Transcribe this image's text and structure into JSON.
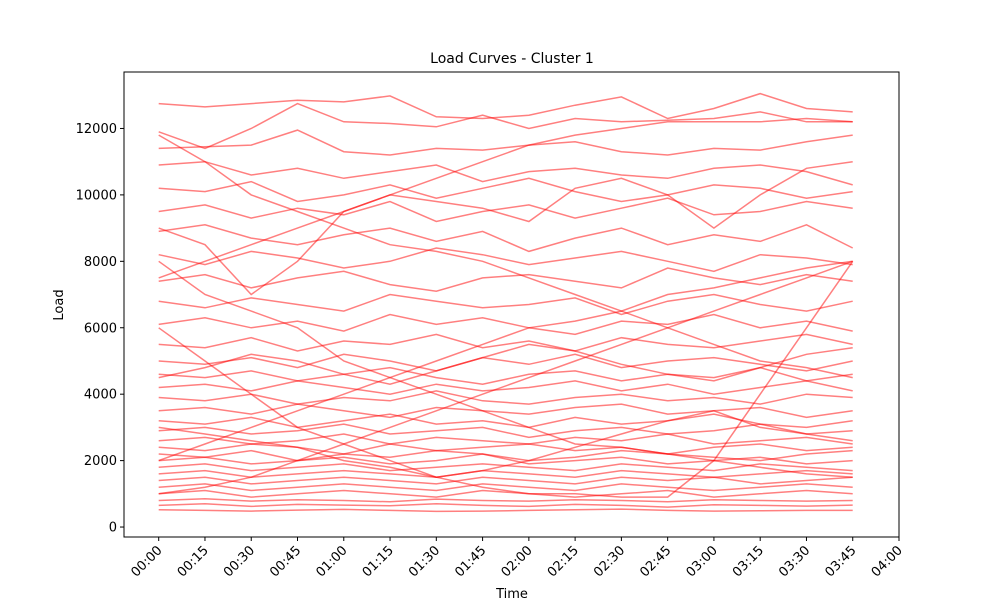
{
  "chart_data": {
    "type": "line",
    "title": "Load Curves - Cluster 1",
    "x_label": "Time",
    "y_label": "Load",
    "color": "#ff0000",
    "alpha": 0.5,
    "categories": [
      "00:00",
      "00:15",
      "00:30",
      "00:45",
      "01:00",
      "01:15",
      "01:30",
      "01:45",
      "02:00",
      "02:15",
      "02:30",
      "02:45",
      "03:00",
      "03:15",
      "03:30",
      "03:45",
      "04:00"
    ],
    "xlim": [
      -0.75,
      16
    ],
    "ylim": [
      -300,
      13700
    ],
    "yticks": [
      0,
      2000,
      4000,
      6000,
      8000,
      10000,
      12000
    ],
    "series": [
      {
        "values": [
          12750,
          12650,
          12750,
          12850,
          12800,
          12980,
          12350,
          12300,
          12400,
          12700,
          12950,
          12300,
          12600,
          13050,
          12600,
          12500,
          null
        ]
      },
      {
        "values": [
          11900,
          11400,
          12000,
          12750,
          12200,
          12150,
          12050,
          12400,
          12000,
          12300,
          12200,
          12250,
          12300,
          12500,
          12200,
          12200,
          null
        ]
      },
      {
        "values": [
          11400,
          11450,
          11500,
          11950,
          11300,
          11200,
          11400,
          11350,
          11500,
          11600,
          11300,
          11200,
          11400,
          11350,
          11600,
          11800,
          null
        ]
      },
      {
        "values": [
          10900,
          11000,
          10600,
          10800,
          10500,
          10700,
          10900,
          10400,
          10700,
          10800,
          10600,
          10500,
          10800,
          10900,
          10700,
          10300,
          null
        ]
      },
      {
        "values": [
          10200,
          10100,
          10400,
          9800,
          10000,
          10300,
          9900,
          10200,
          10500,
          10100,
          9800,
          10000,
          10300,
          10200,
          9900,
          10100,
          null
        ]
      },
      {
        "values": [
          9500,
          9700,
          9300,
          9600,
          9400,
          9800,
          9200,
          9500,
          9700,
          9300,
          9600,
          9900,
          9400,
          9500,
          9800,
          9600,
          null
        ]
      },
      {
        "values": [
          8900,
          9100,
          8700,
          8500,
          8800,
          9000,
          8600,
          8900,
          8300,
          8700,
          9000,
          8500,
          8800,
          8600,
          9100,
          8400,
          null
        ]
      },
      {
        "values": [
          8200,
          7900,
          8300,
          8100,
          7800,
          8000,
          8400,
          8200,
          7900,
          8100,
          8300,
          8000,
          7700,
          8200,
          8100,
          7900,
          null
        ]
      },
      {
        "values": [
          7400,
          7600,
          7200,
          7500,
          7700,
          7300,
          7100,
          7500,
          7600,
          7400,
          7200,
          7800,
          7500,
          7300,
          7600,
          7400,
          null
        ]
      },
      {
        "values": [
          6800,
          6600,
          6900,
          6700,
          6500,
          7000,
          6800,
          6600,
          6700,
          6900,
          6400,
          6800,
          7000,
          6700,
          6500,
          6800,
          null
        ]
      },
      {
        "values": [
          6100,
          6300,
          6000,
          6200,
          5900,
          6400,
          6100,
          6300,
          6000,
          5800,
          6200,
          6100,
          6400,
          6000,
          6200,
          5900,
          null
        ]
      },
      {
        "values": [
          5500,
          5400,
          5700,
          5300,
          5600,
          5500,
          5800,
          5400,
          5600,
          5300,
          5700,
          5500,
          5400,
          5600,
          5800,
          5500,
          null
        ]
      },
      {
        "values": [
          5000,
          4900,
          5100,
          4800,
          5200,
          5000,
          4700,
          5100,
          4900,
          5200,
          4800,
          5000,
          5100,
          4900,
          4700,
          5000,
          null
        ]
      },
      {
        "values": [
          4600,
          4500,
          4700,
          4400,
          4600,
          4800,
          4500,
          4300,
          4600,
          4700,
          4400,
          4600,
          4500,
          4800,
          4400,
          4600,
          null
        ]
      },
      {
        "values": [
          4200,
          4300,
          4100,
          4400,
          4200,
          4000,
          4300,
          4100,
          4200,
          4400,
          4100,
          4300,
          4000,
          4200,
          4400,
          4100,
          null
        ]
      },
      {
        "values": [
          3900,
          3800,
          4000,
          3700,
          3900,
          3800,
          4100,
          3800,
          3700,
          3900,
          4000,
          3800,
          3900,
          3700,
          4000,
          3900,
          null
        ]
      },
      {
        "values": [
          3500,
          3600,
          3400,
          3700,
          3500,
          3300,
          3600,
          3500,
          3400,
          3600,
          3700,
          3400,
          3500,
          3600,
          3300,
          3500,
          null
        ]
      },
      {
        "values": [
          3200,
          3100,
          3300,
          3000,
          3200,
          3400,
          3100,
          3200,
          3000,
          3300,
          3100,
          3200,
          3400,
          3100,
          3000,
          3200,
          null
        ]
      },
      {
        "values": [
          2900,
          3000,
          2800,
          2900,
          3100,
          2800,
          2900,
          3000,
          2700,
          2900,
          3000,
          2800,
          2900,
          3100,
          2800,
          2900,
          null
        ]
      },
      {
        "values": [
          2600,
          2700,
          2500,
          2600,
          2800,
          2500,
          2700,
          2600,
          2500,
          2700,
          2600,
          2800,
          2500,
          2600,
          2700,
          2500,
          null
        ]
      },
      {
        "values": [
          2400,
          2300,
          2500,
          2400,
          2200,
          2500,
          2300,
          2400,
          2500,
          2300,
          2400,
          2200,
          2400,
          2500,
          2300,
          2400,
          null
        ]
      },
      {
        "values": [
          2200,
          2100,
          2300,
          2000,
          2200,
          2100,
          2300,
          2200,
          2000,
          2100,
          2300,
          2200,
          2100,
          2000,
          2200,
          2300,
          null
        ]
      },
      {
        "values": [
          2000,
          2100,
          1900,
          2000,
          2100,
          1900,
          2000,
          2200,
          1900,
          2000,
          2100,
          1900,
          2000,
          2100,
          1900,
          2000,
          null
        ]
      },
      {
        "values": [
          1800,
          1900,
          1700,
          1800,
          1900,
          1700,
          1800,
          1900,
          1800,
          1700,
          1900,
          1800,
          1700,
          1900,
          1800,
          1700,
          null
        ]
      },
      {
        "values": [
          1600,
          1700,
          1500,
          1600,
          1700,
          1600,
          1500,
          1700,
          1600,
          1500,
          1700,
          1600,
          1500,
          1600,
          1700,
          1600,
          null
        ]
      },
      {
        "values": [
          1400,
          1500,
          1300,
          1400,
          1500,
          1400,
          1300,
          1500,
          1400,
          1300,
          1500,
          1400,
          1500,
          1300,
          1400,
          1500,
          null
        ]
      },
      {
        "values": [
          1200,
          1300,
          1100,
          1200,
          1300,
          1200,
          1100,
          1300,
          1200,
          1100,
          1300,
          1200,
          1100,
          1200,
          1300,
          1200,
          null
        ]
      },
      {
        "values": [
          1000,
          1100,
          900,
          1000,
          1100,
          1000,
          900,
          1100,
          1000,
          900,
          1000,
          1100,
          900,
          1000,
          1100,
          1000,
          null
        ]
      },
      {
        "values": [
          800,
          850,
          780,
          820,
          800,
          760,
          840,
          800,
          780,
          820,
          800,
          760,
          820,
          800,
          780,
          800,
          null
        ]
      },
      {
        "values": [
          650,
          700,
          620,
          680,
          660,
          640,
          700,
          650,
          620,
          680,
          650,
          600,
          670,
          650,
          630,
          660,
          null
        ]
      },
      {
        "values": [
          520,
          500,
          480,
          510,
          530,
          500,
          470,
          480,
          500,
          520,
          540,
          500,
          480,
          490,
          500,
          500,
          null
        ]
      },
      {
        "values": [
          11800,
          11000,
          10000,
          9500,
          9000,
          8500,
          8300,
          8000,
          7500,
          7000,
          6500,
          6000,
          5500,
          5000,
          4800,
          4500,
          null
        ]
      },
      {
        "values": [
          2000,
          2500,
          3000,
          3500,
          4000,
          4500,
          5000,
          5500,
          6000,
          6200,
          6500,
          7000,
          7200,
          7500,
          7800,
          8000,
          null
        ]
      },
      {
        "values": [
          8000,
          7000,
          6500,
          6000,
          5000,
          4500,
          4000,
          3500,
          3000,
          2500,
          2400,
          2200,
          2000,
          1800,
          1600,
          1500,
          null
        ]
      },
      {
        "values": [
          1000,
          1200,
          1500,
          2000,
          2500,
          3000,
          3500,
          4000,
          4500,
          5000,
          5500,
          6000,
          6500,
          7000,
          7500,
          8000,
          null
        ]
      },
      {
        "values": [
          6000,
          5000,
          4000,
          3000,
          2500,
          2000,
          1500,
          1200,
          1000,
          1000,
          900,
          900,
          2000,
          4000,
          6000,
          8000,
          null
        ]
      },
      {
        "values": [
          9000,
          8500,
          7000,
          8000,
          9500,
          10000,
          9800,
          9600,
          9200,
          10200,
          10500,
          10000,
          9000,
          10000,
          10800,
          11000,
          null
        ]
      },
      {
        "values": [
          3000,
          2800,
          2600,
          2400,
          2000,
          1800,
          1500,
          1700,
          2000,
          2400,
          2800,
          3200,
          3500,
          3000,
          2800,
          2600,
          null
        ]
      },
      {
        "values": [
          7500,
          8000,
          8500,
          9000,
          9500,
          10000,
          10500,
          11000,
          11500,
          11800,
          12000,
          12200,
          12200,
          12200,
          12300,
          12200,
          null
        ]
      },
      {
        "values": [
          4500,
          4800,
          5200,
          5000,
          4600,
          4300,
          4700,
          5100,
          5500,
          5300,
          4900,
          4600,
          4400,
          4800,
          5200,
          5400,
          null
        ]
      }
    ]
  }
}
